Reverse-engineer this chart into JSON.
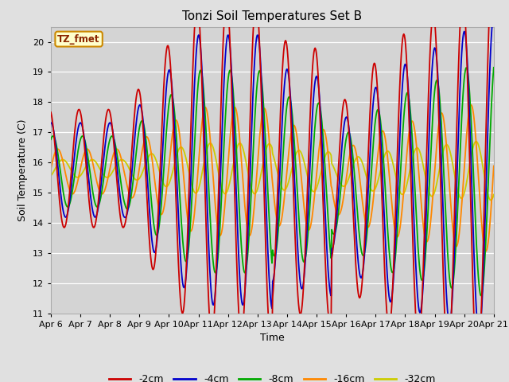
{
  "title": "Tonzi Soil Temperatures Set B",
  "xlabel": "Time",
  "ylabel": "Soil Temperature (C)",
  "ylim": [
    11.0,
    20.5
  ],
  "yticks": [
    11.0,
    12.0,
    13.0,
    14.0,
    15.0,
    16.0,
    17.0,
    18.0,
    19.0,
    20.0
  ],
  "fig_bg_color": "#e0e0e0",
  "plot_bg_color": "#d4d4d4",
  "legend_label": "TZ_fmet",
  "legend_bg": "#ffffcc",
  "legend_border": "#cc8800",
  "series_colors": {
    "-2cm": "#cc0000",
    "-4cm": "#0000cc",
    "-8cm": "#00aa00",
    "-16cm": "#ff8800",
    "-32cm": "#cccc00"
  },
  "series_linewidth": 1.3,
  "n_points": 720,
  "start_day": 6.0,
  "end_day": 21.0,
  "xtick_days": [
    6,
    7,
    8,
    9,
    10,
    11,
    12,
    13,
    14,
    15,
    16,
    17,
    18,
    19,
    20,
    21
  ],
  "period": 1.0,
  "mean_base": 15.8,
  "phase_peak": 0.7,
  "amp2_base": 2.8,
  "amp4_ratio": 0.8,
  "amp8_ratio": 0.6,
  "amp16_ratio": 0.38,
  "amp32_ratio": 0.15,
  "lag4": 0.05,
  "lag8": 0.12,
  "lag16": 0.28,
  "lag32": 0.45
}
